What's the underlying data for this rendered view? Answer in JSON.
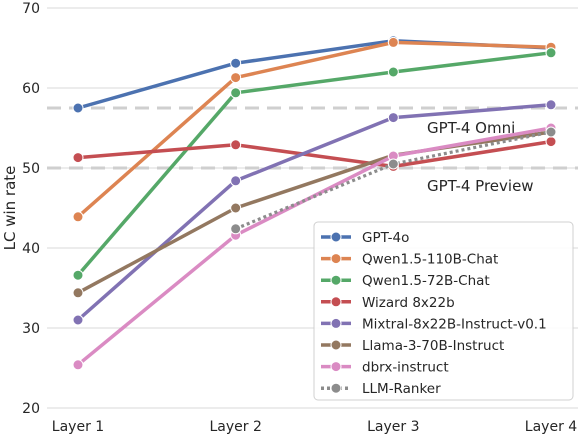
{
  "chart_data": {
    "type": "line",
    "title": "",
    "xlabel": "",
    "ylabel": "LC win rate",
    "categories": [
      "Layer 1",
      "Layer 2",
      "Layer 3",
      "Layer 4"
    ],
    "ylim": [
      20,
      70
    ],
    "yticks": [
      "20",
      "30",
      "40",
      "50",
      "60",
      "70"
    ],
    "grid": "horizontal",
    "legend_position": "bottom-right",
    "series": [
      {
        "name": "GPT-4o",
        "color": "#4c72b0",
        "dashed": false,
        "values": [
          57.5,
          63.1,
          65.9,
          65.0
        ]
      },
      {
        "name": "Qwen1.5-110B-Chat",
        "color": "#dd8452",
        "dashed": false,
        "values": [
          43.9,
          61.3,
          65.7,
          65.1
        ]
      },
      {
        "name": "Qwen1.5-72B-Chat",
        "color": "#55a868",
        "dashed": false,
        "values": [
          36.6,
          59.4,
          62.0,
          64.4
        ]
      },
      {
        "name": "Wizard 8x22b",
        "color": "#c44e52",
        "dashed": false,
        "values": [
          51.3,
          52.9,
          50.2,
          53.3
        ]
      },
      {
        "name": "Mixtral-8x22B-Instruct-v0.1",
        "color": "#8172b3",
        "dashed": false,
        "values": [
          31.0,
          48.4,
          56.3,
          57.9
        ]
      },
      {
        "name": "Llama-3-70B-Instruct",
        "color": "#937860",
        "dashed": false,
        "values": [
          34.4,
          45.0,
          51.6,
          54.5
        ]
      },
      {
        "name": "dbrx-instruct",
        "color": "#da8bc3",
        "dashed": false,
        "values": [
          25.4,
          41.6,
          51.5,
          55.0
        ]
      },
      {
        "name": "LLM-Ranker",
        "color": "#8c8c8c",
        "dashed": true,
        "values": [
          null,
          42.4,
          50.5,
          54.5
        ]
      }
    ],
    "reference_lines": [
      {
        "label": "GPT-4 Omni",
        "value": 57.5
      },
      {
        "label": "GPT-4 Preview",
        "value": 50.0
      }
    ]
  }
}
